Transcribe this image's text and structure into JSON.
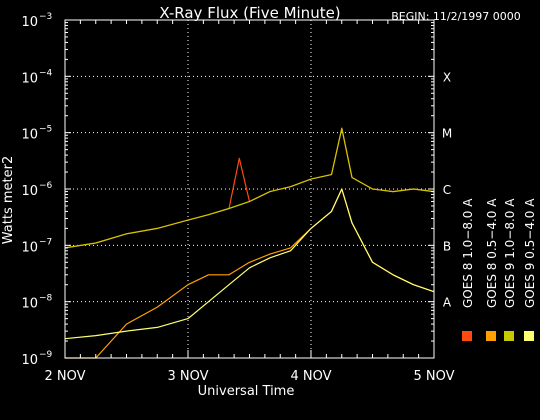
{
  "chart_data": {
    "type": "line",
    "title": "X-Ray Flux (Five Minute)",
    "begin_label": "BEGIN: 11/2/1997 0000",
    "xlabel": "Universal Time",
    "ylabel": "Watts meter^-2",
    "ylabel_display": "Watts meter2",
    "yscale": "log",
    "ylim": [
      1e-09,
      0.001
    ],
    "xlim": [
      "1997-11-02T00:00",
      "1997-11-05T00:00"
    ],
    "x_ticks": [
      "2 NOV",
      "3 NOV",
      "4 NOV",
      "5 NOV"
    ],
    "y_ticks": [
      {
        "value": 1e-09,
        "mantissa": "10",
        "exp": "−9"
      },
      {
        "value": 1e-08,
        "mantissa": "10",
        "exp": "−8"
      },
      {
        "value": 1e-07,
        "mantissa": "10",
        "exp": "−7"
      },
      {
        "value": 1e-06,
        "mantissa": "10",
        "exp": "−6"
      },
      {
        "value": 1e-05,
        "mantissa": "10",
        "exp": "−5"
      },
      {
        "value": 0.0001,
        "mantissa": "10",
        "exp": "−4"
      },
      {
        "value": 0.001,
        "mantissa": "10",
        "exp": "−3"
      }
    ],
    "flare_classes": [
      {
        "label": "A",
        "value": 1e-08
      },
      {
        "label": "B",
        "value": 1e-07
      },
      {
        "label": "C",
        "value": 1e-06
      },
      {
        "label": "M",
        "value": 1e-05
      },
      {
        "label": "X",
        "value": 0.0001
      }
    ],
    "grid": "dotted",
    "legend_placement": "right, vertical",
    "series": [
      {
        "name": "GOES 8 1.0-8.0 A",
        "color": "#ff4a10",
        "x": [
          "1997-11-02T00:00",
          "1997-11-02T06:00",
          "1997-11-02T12:00",
          "1997-11-02T18:00",
          "1997-11-03T00:00",
          "1997-11-03T04:00",
          "1997-11-03T08:00",
          "1997-11-03T10:00",
          "1997-11-03T12:00",
          "1997-11-03T16:00",
          "1997-11-03T20:00",
          "1997-11-04T00:00",
          "1997-11-04T04:00",
          "1997-11-04T06:00",
          "1997-11-04T08:00",
          "1997-11-04T12:00",
          "1997-11-04T16:00",
          "1997-11-04T20:00",
          "1997-11-05T00:00"
        ],
        "y": [
          9e-08,
          1.1e-07,
          1.6e-07,
          2e-07,
          2.8e-07,
          3.5e-07,
          4.5e-07,
          3.5e-06,
          6e-07,
          9e-07,
          1.1e-06,
          1.5e-06,
          1.8e-06,
          1.2e-05,
          1.6e-06,
          1e-06,
          9e-07,
          1e-06,
          9e-07
        ]
      },
      {
        "name": "GOES 8 0.5-4.0 A",
        "color": "#ffa000",
        "x": [
          "1997-11-02T00:00",
          "1997-11-02T06:00",
          "1997-11-02T12:00",
          "1997-11-02T18:00",
          "1997-11-03T00:00",
          "1997-11-03T04:00",
          "1997-11-03T08:00",
          "1997-11-03T12:00",
          "1997-11-03T16:00",
          "1997-11-03T20:00",
          "1997-11-04T00:00",
          "1997-11-04T04:00",
          "1997-11-04T06:00",
          "1997-11-04T08:00",
          "1997-11-04T12:00",
          "1997-11-04T16:00",
          "1997-11-04T20:00",
          "1997-11-05T00:00"
        ],
        "y": [
          1e-09,
          1e-09,
          4e-09,
          8e-09,
          2e-08,
          3e-08,
          3e-08,
          5e-08,
          7e-08,
          9e-08,
          2e-07,
          4e-07,
          1e-06,
          2.5e-07,
          5e-08,
          3e-08,
          2e-08,
          1.5e-08
        ]
      },
      {
        "name": "GOES 9 1.0-8.0 A",
        "color": "#c8c800",
        "x": [
          "1997-11-02T00:00",
          "1997-11-02T06:00",
          "1997-11-02T12:00",
          "1997-11-02T18:00",
          "1997-11-03T00:00",
          "1997-11-03T04:00",
          "1997-11-03T08:00",
          "1997-11-03T12:00",
          "1997-11-03T16:00",
          "1997-11-03T20:00",
          "1997-11-04T00:00",
          "1997-11-04T04:00",
          "1997-11-04T06:00",
          "1997-11-04T08:00",
          "1997-11-04T12:00",
          "1997-11-04T16:00",
          "1997-11-04T20:00",
          "1997-11-05T00:00"
        ],
        "y": [
          9e-08,
          1.1e-07,
          1.6e-07,
          2e-07,
          2.8e-07,
          3.5e-07,
          4.5e-07,
          6e-07,
          9e-07,
          1.1e-06,
          1.5e-06,
          1.8e-06,
          1.2e-05,
          1.6e-06,
          1e-06,
          9e-07,
          1e-06,
          9e-07
        ]
      },
      {
        "name": "GOES 9 0.5-4.0 A",
        "color": "#ffff70",
        "x": [
          "1997-11-02T00:00",
          "1997-11-02T06:00",
          "1997-11-02T12:00",
          "1997-11-02T18:00",
          "1997-11-03T00:00",
          "1997-11-03T04:00",
          "1997-11-03T08:00",
          "1997-11-03T12:00",
          "1997-11-03T16:00",
          "1997-11-03T20:00",
          "1997-11-04T00:00",
          "1997-11-04T04:00",
          "1997-11-04T06:00",
          "1997-11-04T08:00",
          "1997-11-04T12:00",
          "1997-11-04T16:00",
          "1997-11-04T20:00",
          "1997-11-05T00:00"
        ],
        "y": [
          2.2e-09,
          2.5e-09,
          3e-09,
          3.5e-09,
          5e-09,
          1e-08,
          2e-08,
          4e-08,
          6e-08,
          8e-08,
          2e-07,
          4e-07,
          1e-06,
          2.5e-07,
          5e-08,
          3e-08,
          2e-08,
          1.5e-08
        ]
      }
    ],
    "legend_entries": [
      {
        "label": "GOES 8 1.0-8.0 A",
        "display": "GOES 8  1.0−8.0 A",
        "color": "#ff4a10"
      },
      {
        "label": "GOES 8 0.5-4.0 A",
        "display": "GOES 8  0.5−4.0 A",
        "color": "#ffa000"
      },
      {
        "label": "GOES 9 1.0-8.0 A",
        "display": "GOES 9  1.0−8.0 A",
        "color": "#c8c800"
      },
      {
        "label": "GOES 9 0.5-4.0 A",
        "display": "GOES 9  0.5−4.0 A",
        "color": "#ffff70"
      }
    ]
  }
}
